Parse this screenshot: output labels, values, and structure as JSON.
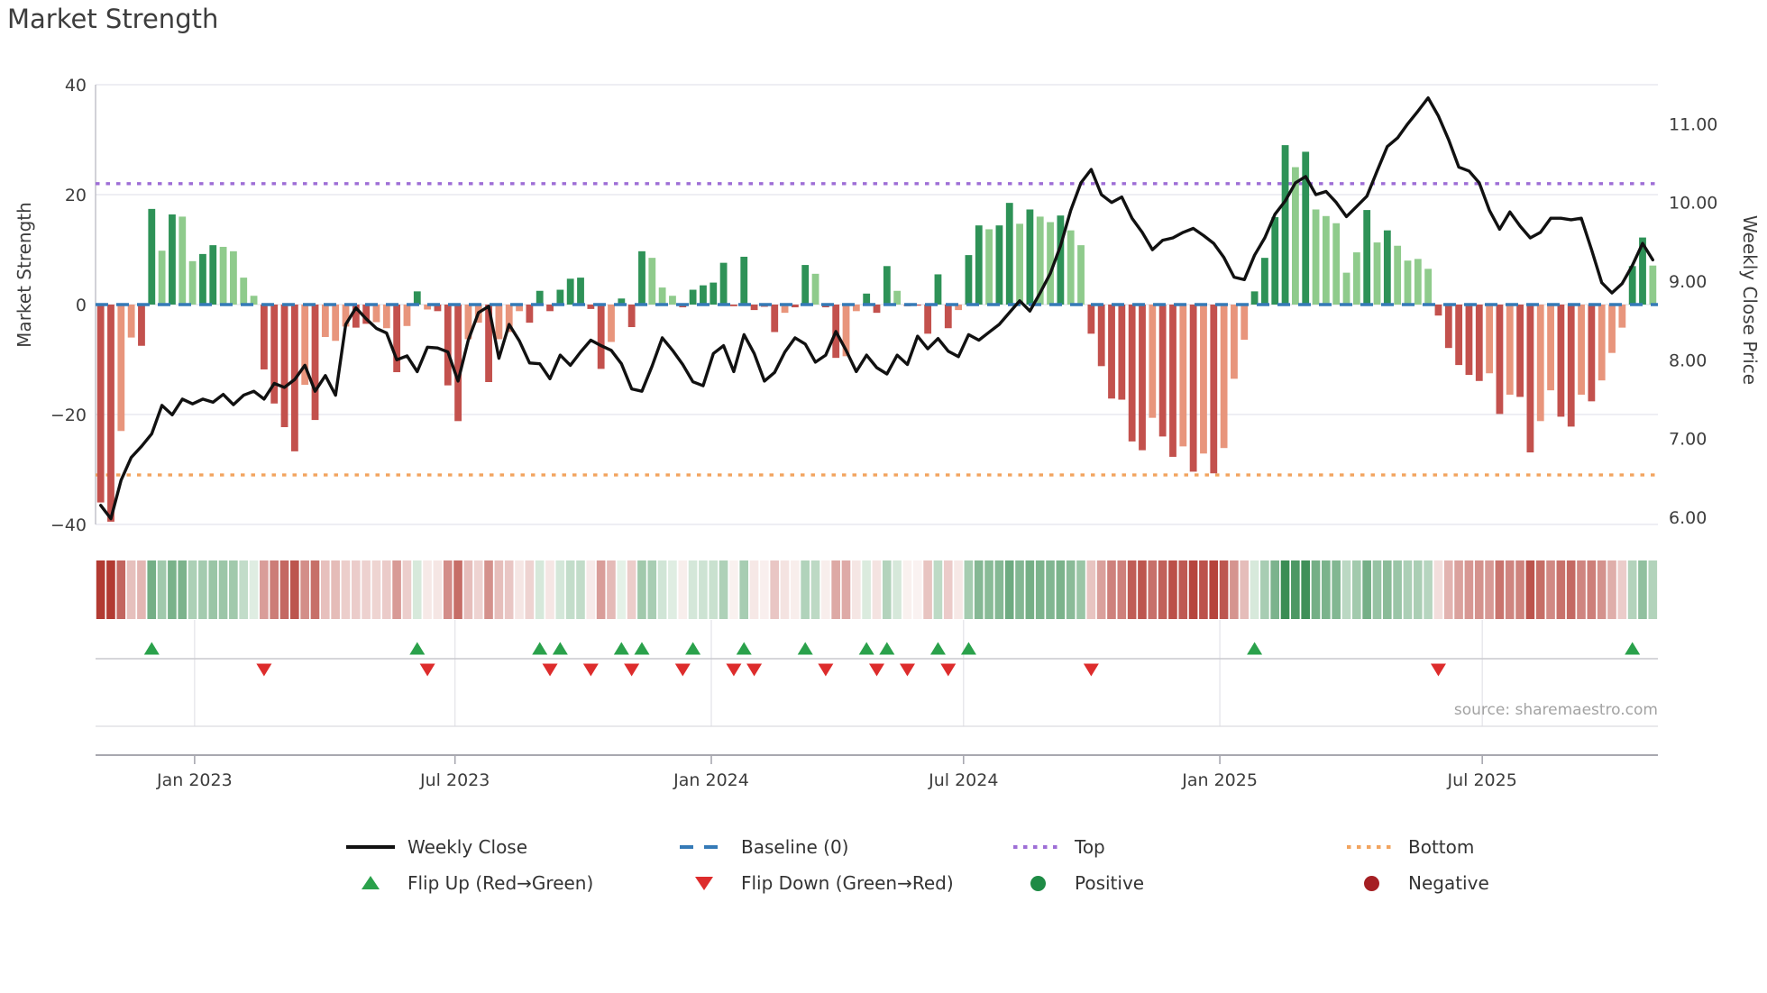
{
  "title": "Market Strength",
  "source": "source: sharemaestro.com",
  "axes": {
    "left_title": "Market Strength",
    "right_title": "Weekly Close Price",
    "y_left_ticks": [
      {
        "value": 40,
        "label": "40"
      },
      {
        "value": 20,
        "label": "20"
      },
      {
        "value": 0,
        "label": "0"
      },
      {
        "value": -20,
        "label": "−20"
      },
      {
        "value": -40,
        "label": "−40"
      }
    ],
    "y_right_ticks": [
      {
        "value": 11,
        "label": "11.00"
      },
      {
        "value": 10,
        "label": "10.00"
      },
      {
        "value": 9,
        "label": "9.00"
      },
      {
        "value": 8,
        "label": "8.00"
      },
      {
        "value": 7,
        "label": "7.00"
      },
      {
        "value": 6,
        "label": "6.00"
      }
    ],
    "x_ticks": [
      {
        "label": "Jan 2023",
        "pos": 9.2
      },
      {
        "label": "Jul 2023",
        "pos": 34.7
      },
      {
        "label": "Jan 2024",
        "pos": 59.8
      },
      {
        "label": "Jul 2024",
        "pos": 84.5
      },
      {
        "label": "Jan 2025",
        "pos": 109.6
      },
      {
        "label": "Jul 2025",
        "pos": 135.3
      }
    ]
  },
  "colors": {
    "bar_dark_green": "#2e9257",
    "bar_light_green": "#8fcb8c",
    "bar_dark_red": "#c3514d",
    "bar_salmon": "#e8957c",
    "baseline": "#357ab7",
    "top_line": "#9e6ed6",
    "bottom_line": "#f2a45f",
    "price_line": "#111111",
    "flip_up": "#2aa14b",
    "flip_down": "#dd2c2c",
    "positive_dot": "#1e8b45",
    "negative_dot": "#a51f23",
    "grid": "#e8e8ef",
    "tick_text": "#3d3d3d"
  },
  "chart_data": {
    "type": "combo",
    "description": "Weekly market strength bars (left axis) with weekly close price line (right axis), heatmap strip and flip markers",
    "ylim_left": [
      -42,
      44
    ],
    "ylim_right": [
      5.8,
      11.6
    ],
    "baseline": 0,
    "top_threshold": 22,
    "bottom_threshold": -31,
    "strength_values": [
      -36,
      -39.5,
      -23,
      -6,
      -7.5,
      17.4,
      9.8,
      16.4,
      16,
      7.9,
      9.2,
      10.8,
      10.5,
      9.7,
      4.9,
      1.6,
      -11.8,
      -18,
      -22.3,
      -26.7,
      -14.6,
      -21,
      -5.9,
      -6.6,
      -4,
      -4.2,
      -3.5,
      -3.2,
      -4.3,
      -12.3,
      -3.9,
      2.4,
      -0.9,
      -1.2,
      -14.7,
      -21.2,
      -6.3,
      -3.3,
      -14.1,
      -6.3,
      -5,
      -1.2,
      -3.3,
      2.5,
      -1.2,
      2.7,
      4.7,
      4.9,
      -0.8,
      -11.7,
      -6.8,
      1.1,
      -4.1,
      9.7,
      8.5,
      3.1,
      1.6,
      -0.5,
      2.7,
      3.5,
      4,
      7.6,
      -0.3,
      8.7,
      -1,
      -0.4,
      -5,
      -1.5,
      -0.5,
      7.2,
      5.6,
      -0.5,
      -9.7,
      -9.4,
      -1.2,
      2,
      -1.5,
      7,
      2.5,
      -0.3,
      -0.2,
      -5.3,
      5.5,
      -4.3,
      -1,
      9,
      14.4,
      13.7,
      14.4,
      18.5,
      14.7,
      17.3,
      16,
      15,
      16.2,
      13.5,
      10.8,
      -5.3,
      -11.2,
      -17.1,
      -17.3,
      -24.9,
      -26.5,
      -20.6,
      -24,
      -27.7,
      -25.8,
      -30.4,
      -27.1,
      -30.7,
      -26.1,
      -13.5,
      -6.4,
      2.4,
      8.5,
      15.9,
      29,
      25,
      27.8,
      17.3,
      16.1,
      14.8,
      5.8,
      9.5,
      17.2,
      11.3,
      13.5,
      10.7,
      8,
      8.3,
      6.5,
      -2,
      -7.9,
      -11,
      -12.8,
      -13.9,
      -12.5,
      -19.9,
      -16.4,
      -16.8,
      -26.9,
      -21.2,
      -15.6,
      -20.4,
      -22.2,
      -16.4,
      -17.6,
      -13.8,
      -8.8,
      -4.2,
      7,
      12.2,
      7.1
    ],
    "strength_bar_shades": "rrssrdldllddllllrrrrsrsssrrssrsdsrrrssrsssrdrdddrrsdrdlllrddddrdrrrsrdlrrssdrdlrrrdrsddlddldlldllrrrrrrsrrsrsrsssddddldllllldldllllrrrrrsrsrrssrrsrsssddl",
    "weekly_close": [
      6.15,
      5.98,
      6.47,
      6.76,
      6.9,
      7.06,
      7.42,
      7.3,
      7.5,
      7.44,
      7.5,
      7.46,
      7.56,
      7.43,
      7.55,
      7.6,
      7.5,
      7.7,
      7.65,
      7.75,
      7.93,
      7.6,
      7.8,
      7.55,
      8.45,
      8.66,
      8.52,
      8.4,
      8.34,
      8,
      8.05,
      7.85,
      8.16,
      8.15,
      8.1,
      7.73,
      8.25,
      8.6,
      8.68,
      8.02,
      8.45,
      8.24,
      7.96,
      7.95,
      7.76,
      8.06,
      7.93,
      8.1,
      8.25,
      8.18,
      8.12,
      7.95,
      7.63,
      7.6,
      7.92,
      8.28,
      8.12,
      7.94,
      7.72,
      7.67,
      8.08,
      8.18,
      7.85,
      8.32,
      8.08,
      7.73,
      7.84,
      8.1,
      8.28,
      8.2,
      7.97,
      8.06,
      8.36,
      8.12,
      7.85,
      8.06,
      7.9,
      7.82,
      8.06,
      7.94,
      8.3,
      8.14,
      8.27,
      8.11,
      8.04,
      8.32,
      8.25,
      8.35,
      8.45,
      8.6,
      8.75,
      8.62,
      8.85,
      9.1,
      9.45,
      9.9,
      10.25,
      10.42,
      10.1,
      10,
      10.07,
      9.8,
      9.62,
      9.4,
      9.52,
      9.55,
      9.62,
      9.67,
      9.58,
      9.48,
      9.3,
      9.05,
      9.02,
      9.33,
      9.55,
      9.85,
      10.02,
      10.25,
      10.33,
      10.1,
      10.14,
      10,
      9.82,
      9.95,
      10.08,
      10.4,
      10.71,
      10.82,
      11,
      11.16,
      11.33,
      11.1,
      10.8,
      10.45,
      10.4,
      10.25,
      9.9,
      9.66,
      9.88,
      9.7,
      9.55,
      9.62,
      9.8,
      9.8,
      9.78,
      9.8,
      9.4,
      8.98,
      8.85,
      8.97,
      9.2,
      9.48,
      9.27
    ],
    "flip_up_weeks": [
      5,
      31,
      43,
      45,
      51,
      53,
      58,
      63,
      69,
      75,
      77,
      82,
      85,
      113,
      150
    ],
    "flip_down_weeks": [
      16,
      32,
      44,
      48,
      52,
      57,
      62,
      64,
      71,
      76,
      79,
      83,
      97,
      131
    ]
  },
  "legend": {
    "row1": [
      {
        "icon": "line",
        "color_key": "price_line",
        "label": "Weekly Close"
      },
      {
        "icon": "dashed",
        "color_key": "baseline",
        "label": "Baseline (0)"
      },
      {
        "icon": "dotted",
        "color_key": "top_line",
        "label": "Top"
      },
      {
        "icon": "dotted",
        "color_key": "bottom_line",
        "label": "Bottom"
      }
    ],
    "row2": [
      {
        "icon": "triangle-up",
        "color_key": "flip_up",
        "label": "Flip Up (Red→Green)"
      },
      {
        "icon": "triangle-down",
        "color_key": "flip_down",
        "label": "Flip Down (Green→Red)"
      },
      {
        "icon": "circle",
        "color_key": "positive_dot",
        "label": "Positive"
      },
      {
        "icon": "circle",
        "color_key": "negative_dot",
        "label": "Negative"
      }
    ]
  }
}
